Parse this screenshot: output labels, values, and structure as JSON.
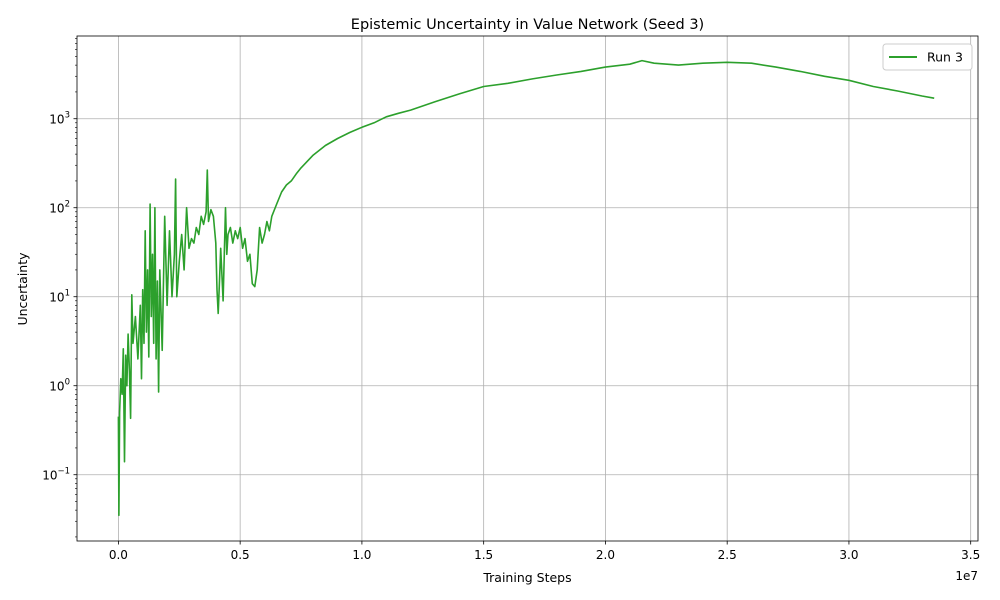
{
  "chart_data": {
    "type": "line",
    "title": "Epistemic Uncertainty in Value Network (Seed 3)",
    "xlabel": "Training Steps",
    "ylabel": "Uncertainty",
    "x_offset_label": "1e7",
    "x_scale_factor": 10000000,
    "xlim": [
      -1700000,
      35300000
    ],
    "ylim": [
      0.018,
      8500
    ],
    "y_scale": "log",
    "grid": true,
    "legend_position": "top-right",
    "x_ticks": [
      {
        "value": 0,
        "label": "0.0"
      },
      {
        "value": 5000000,
        "label": "0.5"
      },
      {
        "value": 10000000,
        "label": "1.0"
      },
      {
        "value": 15000000,
        "label": "1.5"
      },
      {
        "value": 20000000,
        "label": "2.0"
      },
      {
        "value": 25000000,
        "label": "2.5"
      },
      {
        "value": 30000000,
        "label": "3.0"
      },
      {
        "value": 35000000,
        "label": "3.5"
      }
    ],
    "y_ticks": [
      {
        "value": 0.1,
        "mantissa": "10",
        "exponent": "−1"
      },
      {
        "value": 1,
        "mantissa": "10",
        "exponent": "0"
      },
      {
        "value": 10,
        "mantissa": "10",
        "exponent": "1"
      },
      {
        "value": 100,
        "mantissa": "10",
        "exponent": "2"
      },
      {
        "value": 1000,
        "mantissa": "10",
        "exponent": "3"
      }
    ],
    "series": [
      {
        "name": "Run 3",
        "color": "#2ca02c",
        "points": [
          [
            0,
            0.45
          ],
          [
            20000,
            0.035
          ],
          [
            50000,
            0.5
          ],
          [
            100000,
            1.2
          ],
          [
            150000,
            0.8
          ],
          [
            200000,
            2.6
          ],
          [
            250000,
            0.14
          ],
          [
            300000,
            2.2
          ],
          [
            350000,
            1.0
          ],
          [
            400000,
            3.8
          ],
          [
            450000,
            1.5
          ],
          [
            500000,
            0.43
          ],
          [
            550000,
            10.5
          ],
          [
            600000,
            3.0
          ],
          [
            700000,
            6.0
          ],
          [
            800000,
            2.0
          ],
          [
            900000,
            8.0
          ],
          [
            950000,
            1.2
          ],
          [
            1000000,
            12.0
          ],
          [
            1050000,
            3.0
          ],
          [
            1100000,
            55.0
          ],
          [
            1150000,
            4.0
          ],
          [
            1200000,
            20.0
          ],
          [
            1250000,
            2.1
          ],
          [
            1300000,
            110.0
          ],
          [
            1350000,
            6.0
          ],
          [
            1400000,
            30.0
          ],
          [
            1450000,
            3.0
          ],
          [
            1500000,
            100.0
          ],
          [
            1550000,
            2.0
          ],
          [
            1600000,
            15.0
          ],
          [
            1650000,
            0.85
          ],
          [
            1700000,
            20.0
          ],
          [
            1800000,
            2.5
          ],
          [
            1900000,
            80.0
          ],
          [
            2000000,
            8.0
          ],
          [
            2100000,
            55.0
          ],
          [
            2200000,
            10.0
          ],
          [
            2300000,
            30.0
          ],
          [
            2350000,
            210.0
          ],
          [
            2400000,
            10.0
          ],
          [
            2500000,
            25.0
          ],
          [
            2600000,
            50.0
          ],
          [
            2700000,
            20.0
          ],
          [
            2800000,
            100.0
          ],
          [
            2900000,
            35.0
          ],
          [
            3000000,
            45.0
          ],
          [
            3100000,
            40.0
          ],
          [
            3200000,
            60.0
          ],
          [
            3300000,
            50.0
          ],
          [
            3400000,
            80.0
          ],
          [
            3500000,
            65.0
          ],
          [
            3600000,
            90.0
          ],
          [
            3650000,
            265.0
          ],
          [
            3700000,
            70.0
          ],
          [
            3800000,
            95.0
          ],
          [
            3900000,
            80.0
          ],
          [
            4000000,
            40.0
          ],
          [
            4050000,
            12.0
          ],
          [
            4100000,
            6.5
          ],
          [
            4150000,
            15.0
          ],
          [
            4200000,
            35.0
          ],
          [
            4300000,
            9.0
          ],
          [
            4400000,
            100.0
          ],
          [
            4450000,
            30.0
          ],
          [
            4500000,
            50.0
          ],
          [
            4600000,
            60.0
          ],
          [
            4700000,
            40.0
          ],
          [
            4800000,
            55.0
          ],
          [
            4900000,
            45.0
          ],
          [
            5000000,
            60.0
          ],
          [
            5100000,
            35.0
          ],
          [
            5200000,
            45.0
          ],
          [
            5300000,
            25.0
          ],
          [
            5400000,
            30.0
          ],
          [
            5500000,
            14.0
          ],
          [
            5600000,
            13.0
          ],
          [
            5700000,
            20.0
          ],
          [
            5800000,
            60.0
          ],
          [
            5900000,
            40.0
          ],
          [
            6000000,
            50.0
          ],
          [
            6100000,
            70.0
          ],
          [
            6200000,
            55.0
          ],
          [
            6300000,
            80.0
          ],
          [
            6500000,
            110.0
          ],
          [
            6700000,
            150.0
          ],
          [
            6900000,
            180.0
          ],
          [
            7100000,
            200.0
          ],
          [
            7300000,
            240.0
          ],
          [
            7500000,
            280.0
          ],
          [
            8000000,
            390.0
          ],
          [
            8500000,
            500.0
          ],
          [
            9000000,
            600.0
          ],
          [
            9500000,
            700.0
          ],
          [
            10000000,
            800.0
          ],
          [
            10500000,
            900.0
          ],
          [
            11000000,
            1050.0
          ],
          [
            11500000,
            1150.0
          ],
          [
            12000000,
            1250.0
          ],
          [
            13000000,
            1550.0
          ],
          [
            14000000,
            1900.0
          ],
          [
            15000000,
            2300.0
          ],
          [
            16000000,
            2500.0
          ],
          [
            17000000,
            2800.0
          ],
          [
            18000000,
            3100.0
          ],
          [
            19000000,
            3400.0
          ],
          [
            20000000,
            3800.0
          ],
          [
            21000000,
            4100.0
          ],
          [
            21500000,
            4500.0
          ],
          [
            22000000,
            4200.0
          ],
          [
            23000000,
            4000.0
          ],
          [
            24000000,
            4200.0
          ],
          [
            25000000,
            4300.0
          ],
          [
            26000000,
            4200.0
          ],
          [
            27000000,
            3800.0
          ],
          [
            28000000,
            3400.0
          ],
          [
            29000000,
            3000.0
          ],
          [
            30000000,
            2700.0
          ],
          [
            31000000,
            2300.0
          ],
          [
            32000000,
            2050.0
          ],
          [
            33000000,
            1800.0
          ],
          [
            33500000,
            1700.0
          ]
        ]
      }
    ]
  }
}
